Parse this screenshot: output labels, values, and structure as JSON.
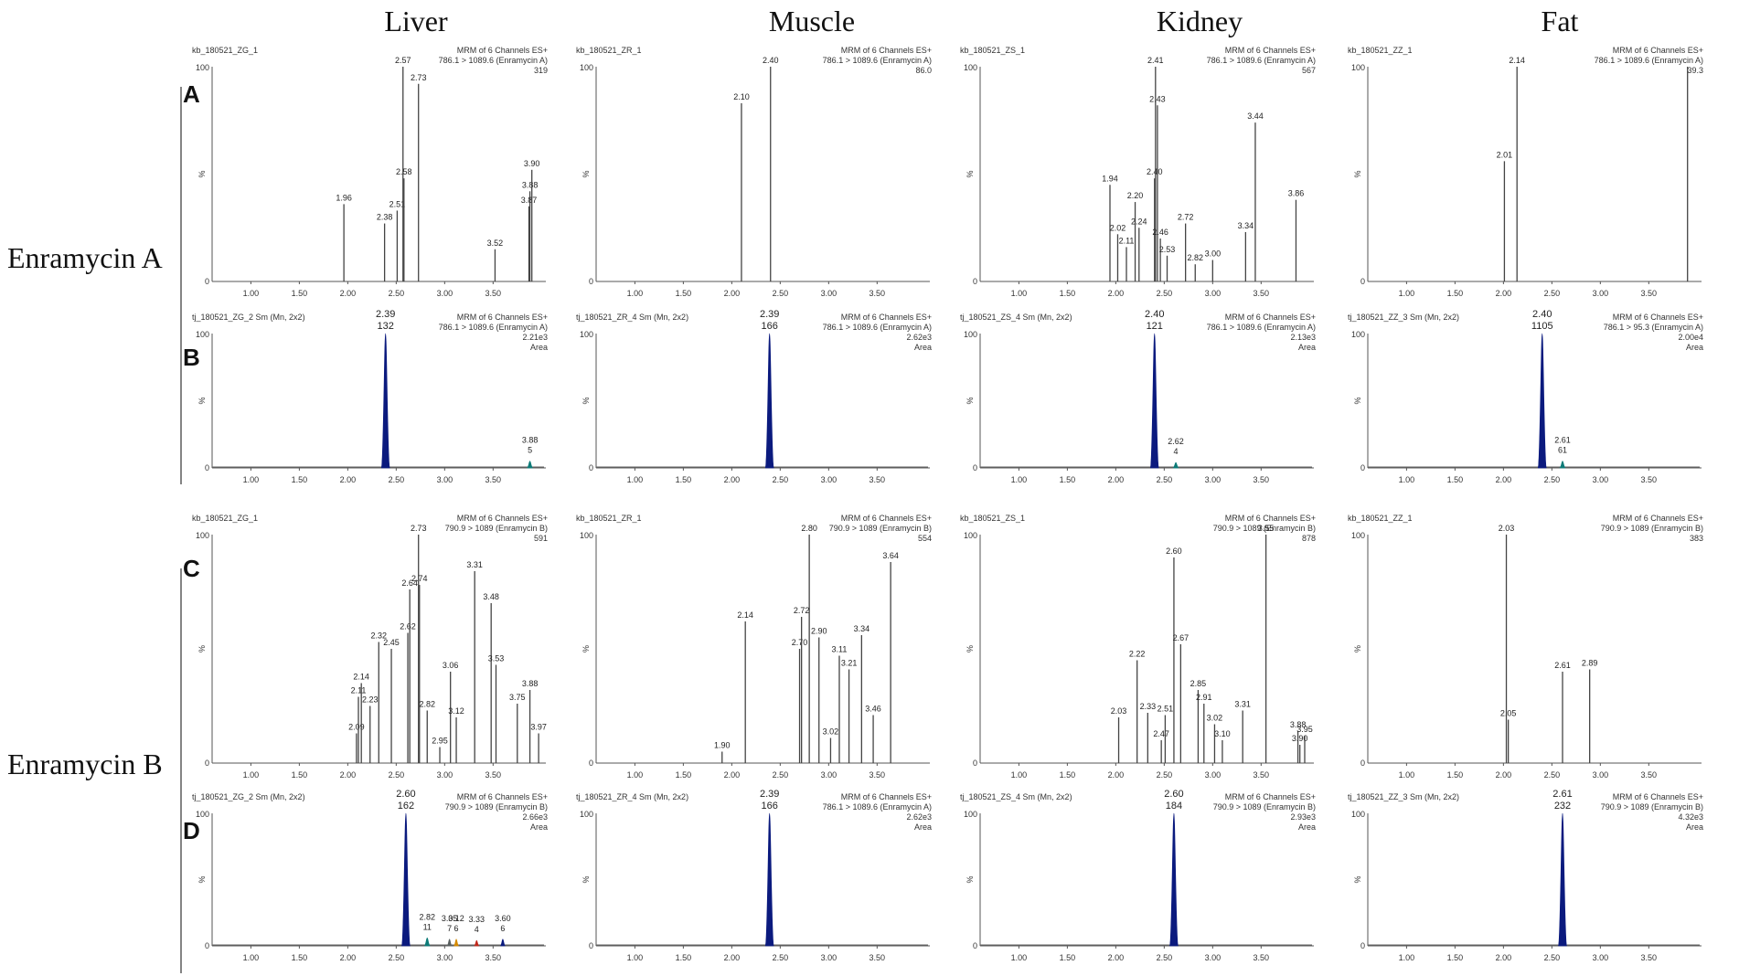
{
  "column_titles": [
    "Liver",
    "Muscle",
    "Kidney",
    "Fat"
  ],
  "row_titles": [
    "Enramycin A",
    "Enramycin B"
  ],
  "panel_letters": [
    "A",
    "B",
    "C",
    "D"
  ],
  "chart_data": [
    {
      "id": "A-Liver",
      "type": "line",
      "style": "sticks",
      "row": 0,
      "col": 0,
      "sample": "kb_180521_ZG_1",
      "header": [
        "MRM of 6 Channels ES+",
        "786.1 > 1089.6 (Enramycin A)",
        "319"
      ],
      "xlim": [
        0.6,
        3.95
      ],
      "ylim": [
        0,
        100
      ],
      "xticks": [
        "1.00",
        "1.50",
        "2.00",
        "2.50",
        "3.00",
        "3.50"
      ],
      "peaks": [
        {
          "x": 1.96,
          "y": 36,
          "label": "1.96"
        },
        {
          "x": 2.38,
          "y": 27,
          "label": "2.38"
        },
        {
          "x": 2.51,
          "y": 33,
          "label": "2.51"
        },
        {
          "x": 2.57,
          "y": 100,
          "label": "2.57"
        },
        {
          "x": 2.58,
          "y": 48,
          "label": "2.58"
        },
        {
          "x": 2.73,
          "y": 92,
          "label": "2.73"
        },
        {
          "x": 3.52,
          "y": 15,
          "label": "3.52"
        },
        {
          "x": 3.87,
          "y": 35,
          "label": "3.87"
        },
        {
          "x": 3.88,
          "y": 42,
          "label": "3.88"
        },
        {
          "x": 3.9,
          "y": 52,
          "label": "3.90"
        }
      ]
    },
    {
      "id": "A-Muscle",
      "type": "line",
      "style": "sticks",
      "row": 0,
      "col": 1,
      "sample": "kb_180521_ZR_1",
      "header": [
        "MRM of 6 Channels ES+",
        "786.1 > 1089.6 (Enramycin A)",
        "86.0"
      ],
      "xlim": [
        0.6,
        3.95
      ],
      "ylim": [
        0,
        100
      ],
      "xticks": [
        "1.00",
        "1.50",
        "2.00",
        "2.50",
        "3.00",
        "3.50"
      ],
      "peaks": [
        {
          "x": 2.1,
          "y": 83,
          "label": "2.10"
        },
        {
          "x": 2.4,
          "y": 100,
          "label": "2.40"
        }
      ]
    },
    {
      "id": "A-Kidney",
      "type": "line",
      "style": "sticks",
      "row": 0,
      "col": 2,
      "sample": "kb_180521_ZS_1",
      "header": [
        "MRM of 6 Channels ES+",
        "786.1 > 1089.6 (Enramycin A)",
        "567"
      ],
      "xlim": [
        0.6,
        3.95
      ],
      "ylim": [
        0,
        100
      ],
      "xticks": [
        "1.00",
        "1.50",
        "2.00",
        "2.50",
        "3.00",
        "3.50"
      ],
      "peaks": [
        {
          "x": 1.94,
          "y": 45,
          "label": "1.94"
        },
        {
          "x": 2.02,
          "y": 22,
          "label": "2.02"
        },
        {
          "x": 2.11,
          "y": 16,
          "label": "2.11"
        },
        {
          "x": 2.2,
          "y": 37,
          "label": "2.20"
        },
        {
          "x": 2.24,
          "y": 25,
          "label": "2.24"
        },
        {
          "x": 2.4,
          "y": 48,
          "label": "2.40"
        },
        {
          "x": 2.41,
          "y": 100,
          "label": "2.41"
        },
        {
          "x": 2.43,
          "y": 82,
          "label": "2.43"
        },
        {
          "x": 2.46,
          "y": 20,
          "label": "2.46"
        },
        {
          "x": 2.53,
          "y": 12,
          "label": "2.53"
        },
        {
          "x": 2.72,
          "y": 27,
          "label": "2.72"
        },
        {
          "x": 2.82,
          "y": 8,
          "label": "2.82"
        },
        {
          "x": 3.0,
          "y": 10,
          "label": "3.00"
        },
        {
          "x": 3.34,
          "y": 23,
          "label": "3.34"
        },
        {
          "x": 3.44,
          "y": 74,
          "label": "3.44"
        },
        {
          "x": 3.86,
          "y": 38,
          "label": "3.86"
        }
      ]
    },
    {
      "id": "A-Fat",
      "type": "line",
      "style": "sticks",
      "row": 0,
      "col": 3,
      "sample": "kb_180521_ZZ_1",
      "header": [
        "MRM of 6 Channels ES+",
        "786.1 > 1089.6 (Enramycin A)",
        "39.3"
      ],
      "xlim": [
        0.6,
        3.95
      ],
      "ylim": [
        0,
        100
      ],
      "xticks": [
        "1.00",
        "1.50",
        "2.00",
        "2.50",
        "3.00",
        "3.50"
      ],
      "peaks": [
        {
          "x": 2.01,
          "y": 56,
          "label": "2.01"
        },
        {
          "x": 2.14,
          "y": 100,
          "label": "2.14"
        },
        {
          "x": 3.9,
          "y": 100,
          "label": ""
        }
      ]
    },
    {
      "id": "B-Liver",
      "type": "line",
      "style": "area",
      "row": 1,
      "col": 0,
      "sample": "tj_180521_ZG_2 Sm (Mn, 2x2)",
      "header": [
        "MRM of 6 Channels ES+",
        "786.1 > 1089.6 (Enramycin A)",
        "2.21e3",
        "Area"
      ],
      "xlim": [
        0.6,
        3.95
      ],
      "ylim": [
        0,
        100
      ],
      "xticks": [
        "1.00",
        "1.50",
        "2.00",
        "2.50",
        "3.00",
        "3.50"
      ],
      "peaks": [
        {
          "x": 2.39,
          "y": 100,
          "label": "2.39",
          "area": "132",
          "color": "#0b1a7e",
          "w": 0.045
        },
        {
          "x": 3.88,
          "y": 5,
          "label": "3.88",
          "area": "5",
          "color": "#0d7b78",
          "w": 0.03
        }
      ]
    },
    {
      "id": "B-Muscle",
      "type": "line",
      "style": "area",
      "row": 1,
      "col": 1,
      "sample": "tj_180521_ZR_4 Sm (Mn, 2x2)",
      "header": [
        "MRM of 6 Channels ES+",
        "786.1 > 1089.6 (Enramycin A)",
        "2.62e3",
        "Area"
      ],
      "xlim": [
        0.6,
        3.95
      ],
      "ylim": [
        0,
        100
      ],
      "xticks": [
        "1.00",
        "1.50",
        "2.00",
        "2.50",
        "3.00",
        "3.50"
      ],
      "peaks": [
        {
          "x": 2.39,
          "y": 100,
          "label": "2.39",
          "area": "166",
          "color": "#0b1a7e",
          "w": 0.045
        }
      ]
    },
    {
      "id": "B-Kidney",
      "type": "line",
      "style": "area",
      "row": 1,
      "col": 2,
      "sample": "tj_180521_ZS_4 Sm (Mn, 2x2)",
      "header": [
        "MRM of 6 Channels ES+",
        "786.1 > 1089.6 (Enramycin A)",
        "2.13e3",
        "Area"
      ],
      "xlim": [
        0.6,
        3.95
      ],
      "ylim": [
        0,
        100
      ],
      "xticks": [
        "1.00",
        "1.50",
        "2.00",
        "2.50",
        "3.00",
        "3.50"
      ],
      "peaks": [
        {
          "x": 2.4,
          "y": 100,
          "label": "2.40",
          "area": "121",
          "color": "#0b1a7e",
          "w": 0.045
        },
        {
          "x": 2.62,
          "y": 4,
          "label": "2.62",
          "area": "4",
          "color": "#0d7b78",
          "w": 0.03
        }
      ]
    },
    {
      "id": "B-Fat",
      "type": "line",
      "style": "area",
      "row": 1,
      "col": 3,
      "sample": "tj_180521_ZZ_3 Sm (Mn, 2x2)",
      "header": [
        "MRM of 6 Channels ES+",
        "786.1 > 95.3 (Enramycin A)",
        "2.00e4",
        "Area"
      ],
      "xlim": [
        0.6,
        3.95
      ],
      "ylim": [
        0,
        100
      ],
      "xticks": [
        "1.00",
        "1.50",
        "2.00",
        "2.50",
        "3.00",
        "3.50"
      ],
      "peaks": [
        {
          "x": 2.4,
          "y": 100,
          "label": "2.40",
          "area": "1105",
          "color": "#0b1a7e",
          "w": 0.045
        },
        {
          "x": 2.61,
          "y": 5,
          "label": "2.61",
          "area": "61",
          "color": "#0d7b78",
          "w": 0.03
        }
      ]
    },
    {
      "id": "C-Liver",
      "type": "line",
      "style": "sticks",
      "row": 2,
      "col": 0,
      "sample": "kb_180521_ZG_1",
      "header": [
        "MRM of 6 Channels ES+",
        "790.9 > 1089 (Enramycin B)",
        "591"
      ],
      "xlim": [
        0.6,
        3.95
      ],
      "ylim": [
        0,
        100
      ],
      "xticks": [
        "1.00",
        "1.50",
        "2.00",
        "2.50",
        "3.00",
        "3.50"
      ],
      "peaks": [
        {
          "x": 2.09,
          "y": 13,
          "label": "2.09"
        },
        {
          "x": 2.11,
          "y": 29,
          "label": "2.11"
        },
        {
          "x": 2.14,
          "y": 35,
          "label": "2.14"
        },
        {
          "x": 2.23,
          "y": 25,
          "label": "2.23"
        },
        {
          "x": 2.32,
          "y": 53,
          "label": "2.32"
        },
        {
          "x": 2.45,
          "y": 50,
          "label": "2.45"
        },
        {
          "x": 2.62,
          "y": 57,
          "label": "2.62"
        },
        {
          "x": 2.64,
          "y": 76,
          "label": "2.64"
        },
        {
          "x": 2.73,
          "y": 100,
          "label": "2.73"
        },
        {
          "x": 2.74,
          "y": 78,
          "label": "2.74"
        },
        {
          "x": 2.82,
          "y": 23,
          "label": "2.82"
        },
        {
          "x": 2.95,
          "y": 7,
          "label": "2.95"
        },
        {
          "x": 3.06,
          "y": 40,
          "label": "3.06"
        },
        {
          "x": 3.12,
          "y": 20,
          "label": "3.12"
        },
        {
          "x": 3.31,
          "y": 84,
          "label": "3.31"
        },
        {
          "x": 3.48,
          "y": 70,
          "label": "3.48"
        },
        {
          "x": 3.53,
          "y": 43,
          "label": "3.53"
        },
        {
          "x": 3.75,
          "y": 26,
          "label": "3.75"
        },
        {
          "x": 3.88,
          "y": 32,
          "label": "3.88"
        },
        {
          "x": 3.97,
          "y": 13,
          "label": "3.97"
        }
      ]
    },
    {
      "id": "C-Muscle",
      "type": "line",
      "style": "sticks",
      "row": 2,
      "col": 1,
      "sample": "kb_180521_ZR_1",
      "header": [
        "MRM of 6 Channels ES+",
        "790.9 > 1089 (Enramycin B)",
        "554"
      ],
      "xlim": [
        0.6,
        3.95
      ],
      "ylim": [
        0,
        100
      ],
      "xticks": [
        "1.00",
        "1.50",
        "2.00",
        "2.50",
        "3.00",
        "3.50"
      ],
      "peaks": [
        {
          "x": 1.9,
          "y": 5,
          "label": "1.90"
        },
        {
          "x": 2.14,
          "y": 62,
          "label": "2.14"
        },
        {
          "x": 2.7,
          "y": 50,
          "label": "2.70"
        },
        {
          "x": 2.72,
          "y": 64,
          "label": "2.72"
        },
        {
          "x": 2.8,
          "y": 100,
          "label": "2.80"
        },
        {
          "x": 2.9,
          "y": 55,
          "label": "2.90"
        },
        {
          "x": 3.02,
          "y": 11,
          "label": "3.02"
        },
        {
          "x": 3.11,
          "y": 47,
          "label": "3.11"
        },
        {
          "x": 3.21,
          "y": 41,
          "label": "3.21"
        },
        {
          "x": 3.34,
          "y": 56,
          "label": "3.34"
        },
        {
          "x": 3.46,
          "y": 21,
          "label": "3.46"
        },
        {
          "x": 3.64,
          "y": 88,
          "label": "3.64"
        }
      ]
    },
    {
      "id": "C-Kidney",
      "type": "line",
      "style": "sticks",
      "row": 2,
      "col": 2,
      "sample": "kb_180521_ZS_1",
      "header": [
        "MRM of 6 Channels ES+",
        "790.9 > 1089 (Enramycin B)",
        "878"
      ],
      "xlim": [
        0.6,
        3.95
      ],
      "ylim": [
        0,
        100
      ],
      "xticks": [
        "1.00",
        "1.50",
        "2.00",
        "2.50",
        "3.00",
        "3.50"
      ],
      "peaks": [
        {
          "x": 2.03,
          "y": 20,
          "label": "2.03"
        },
        {
          "x": 2.22,
          "y": 45,
          "label": "2.22"
        },
        {
          "x": 2.33,
          "y": 22,
          "label": "2.33"
        },
        {
          "x": 2.47,
          "y": 10,
          "label": "2.47"
        },
        {
          "x": 2.51,
          "y": 21,
          "label": "2.51"
        },
        {
          "x": 2.6,
          "y": 90,
          "label": "2.60"
        },
        {
          "x": 2.67,
          "y": 52,
          "label": "2.67"
        },
        {
          "x": 2.85,
          "y": 32,
          "label": "2.85"
        },
        {
          "x": 2.91,
          "y": 26,
          "label": "2.91"
        },
        {
          "x": 3.02,
          "y": 17,
          "label": "3.02"
        },
        {
          "x": 3.1,
          "y": 10,
          "label": "3.10"
        },
        {
          "x": 3.31,
          "y": 23,
          "label": "3.31"
        },
        {
          "x": 3.55,
          "y": 100,
          "label": "3.55"
        },
        {
          "x": 3.88,
          "y": 14,
          "label": "3.88"
        },
        {
          "x": 3.9,
          "y": 8,
          "label": "3.90"
        },
        {
          "x": 3.95,
          "y": 12,
          "label": "3.95"
        }
      ]
    },
    {
      "id": "C-Fat",
      "type": "line",
      "style": "sticks",
      "row": 2,
      "col": 3,
      "sample": "kb_180521_ZZ_1",
      "header": [
        "MRM of 6 Channels ES+",
        "790.9 > 1089 (Enramycin B)",
        "383"
      ],
      "xlim": [
        0.6,
        3.95
      ],
      "ylim": [
        0,
        100
      ],
      "xticks": [
        "1.00",
        "1.50",
        "2.00",
        "2.50",
        "3.00",
        "3.50"
      ],
      "peaks": [
        {
          "x": 2.03,
          "y": 100,
          "label": "2.03"
        },
        {
          "x": 2.05,
          "y": 19,
          "label": "2.05"
        },
        {
          "x": 2.61,
          "y": 40,
          "label": "2.61"
        },
        {
          "x": 2.89,
          "y": 41,
          "label": "2.89"
        }
      ]
    },
    {
      "id": "D-Liver",
      "type": "line",
      "style": "area",
      "row": 3,
      "col": 0,
      "sample": "tj_180521_ZG_2 Sm (Mn, 2x2)",
      "header": [
        "MRM of 6 Channels ES+",
        "790.9 > 1089 (Enramycin B)",
        "2.66e3",
        "Area"
      ],
      "xlim": [
        0.6,
        3.95
      ],
      "ylim": [
        0,
        100
      ],
      "xticks": [
        "1.00",
        "1.50",
        "2.00",
        "2.50",
        "3.00",
        "3.50"
      ],
      "peaks": [
        {
          "x": 2.6,
          "y": 100,
          "label": "2.60",
          "area": "162",
          "color": "#0b1a7e",
          "w": 0.045
        },
        {
          "x": 2.82,
          "y": 6,
          "label": "2.82",
          "area": "11",
          "color": "#0d7b78",
          "w": 0.03
        },
        {
          "x": 3.05,
          "y": 5,
          "label": "3.05",
          "area": "7",
          "color": "#5a6060",
          "w": 0.025
        },
        {
          "x": 3.12,
          "y": 5,
          "label": "3.12",
          "area": "6",
          "color": "#d58a00",
          "w": 0.025
        },
        {
          "x": 3.33,
          "y": 4,
          "label": "3.33",
          "area": "4",
          "color": "#c0281c",
          "w": 0.025
        },
        {
          "x": 3.6,
          "y": 5,
          "label": "3.60",
          "area": "6",
          "color": "#0b1a7e",
          "w": 0.025
        }
      ]
    },
    {
      "id": "D-Muscle",
      "type": "line",
      "style": "area",
      "row": 3,
      "col": 1,
      "sample": "tj_180521_ZR_4 Sm (Mn, 2x2)",
      "header": [
        "MRM of 6 Channels ES+",
        "786.1 > 1089.6 (Enramycin A)",
        "2.62e3",
        "Area"
      ],
      "xlim": [
        0.6,
        3.95
      ],
      "ylim": [
        0,
        100
      ],
      "xticks": [
        "1.00",
        "1.50",
        "2.00",
        "2.50",
        "3.00",
        "3.50"
      ],
      "peaks": [
        {
          "x": 2.39,
          "y": 100,
          "label": "2.39",
          "area": "166",
          "color": "#0b1a7e",
          "w": 0.045
        }
      ]
    },
    {
      "id": "D-Kidney",
      "type": "line",
      "style": "area",
      "row": 3,
      "col": 2,
      "sample": "tj_180521_ZS_4 Sm (Mn, 2x2)",
      "header": [
        "MRM of 6 Channels ES+",
        "790.9 > 1089 (Enramycin B)",
        "2.93e3",
        "Area"
      ],
      "xlim": [
        0.6,
        3.95
      ],
      "ylim": [
        0,
        100
      ],
      "xticks": [
        "1.00",
        "1.50",
        "2.00",
        "2.50",
        "3.00",
        "3.50"
      ],
      "peaks": [
        {
          "x": 2.6,
          "y": 100,
          "label": "2.60",
          "area": "184",
          "color": "#0b1a7e",
          "w": 0.045
        }
      ]
    },
    {
      "id": "D-Fat",
      "type": "line",
      "style": "area",
      "row": 3,
      "col": 3,
      "sample": "tj_180521_ZZ_3 Sm (Mn, 2x2)",
      "header": [
        "MRM of 6 Channels ES+",
        "790.9 > 1089 (Enramycin B)",
        "4.32e3",
        "Area"
      ],
      "xlim": [
        0.6,
        3.95
      ],
      "ylim": [
        0,
        100
      ],
      "xticks": [
        "1.00",
        "1.50",
        "2.00",
        "2.50",
        "3.00",
        "3.50"
      ],
      "peaks": [
        {
          "x": 2.61,
          "y": 100,
          "label": "2.61",
          "area": "232",
          "color": "#0b1a7e",
          "w": 0.045
        }
      ]
    }
  ]
}
